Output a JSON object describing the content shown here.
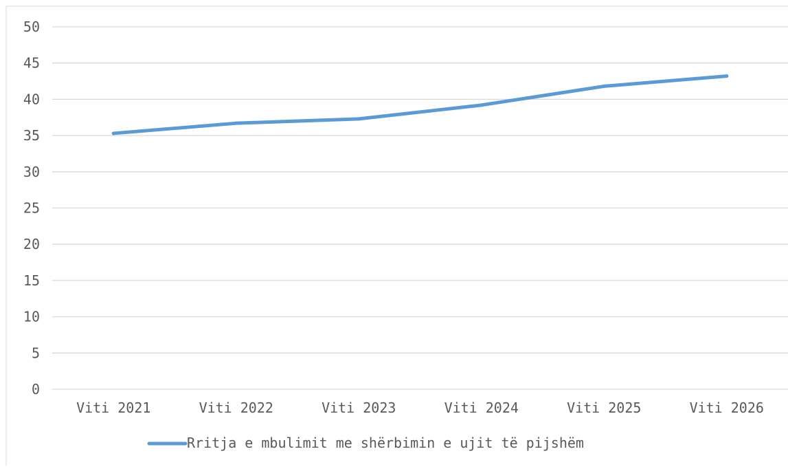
{
  "chart_data": {
    "type": "line",
    "title": "",
    "xlabel": "",
    "ylabel": "",
    "categories": [
      "Viti 2021",
      "Viti 2022",
      "Viti 2023",
      "Viti 2024",
      "Viti 2025",
      "Viti 2026"
    ],
    "series": [
      {
        "name": "Rritja e mbulimit me shërbimin e ujit të pijshëm",
        "values": [
          35.3,
          36.7,
          37.3,
          39.2,
          41.8,
          43.2
        ],
        "color": "#5b9bd5"
      }
    ],
    "ylim": [
      0,
      50
    ],
    "yticks": [
      0,
      5,
      10,
      15,
      20,
      25,
      30,
      35,
      40,
      45,
      50
    ],
    "grid": "horizontal",
    "legend_position": "bottom",
    "colors": {
      "grid": "#d9d9d9",
      "text": "#595959",
      "frame": "#d9d9d9"
    }
  }
}
